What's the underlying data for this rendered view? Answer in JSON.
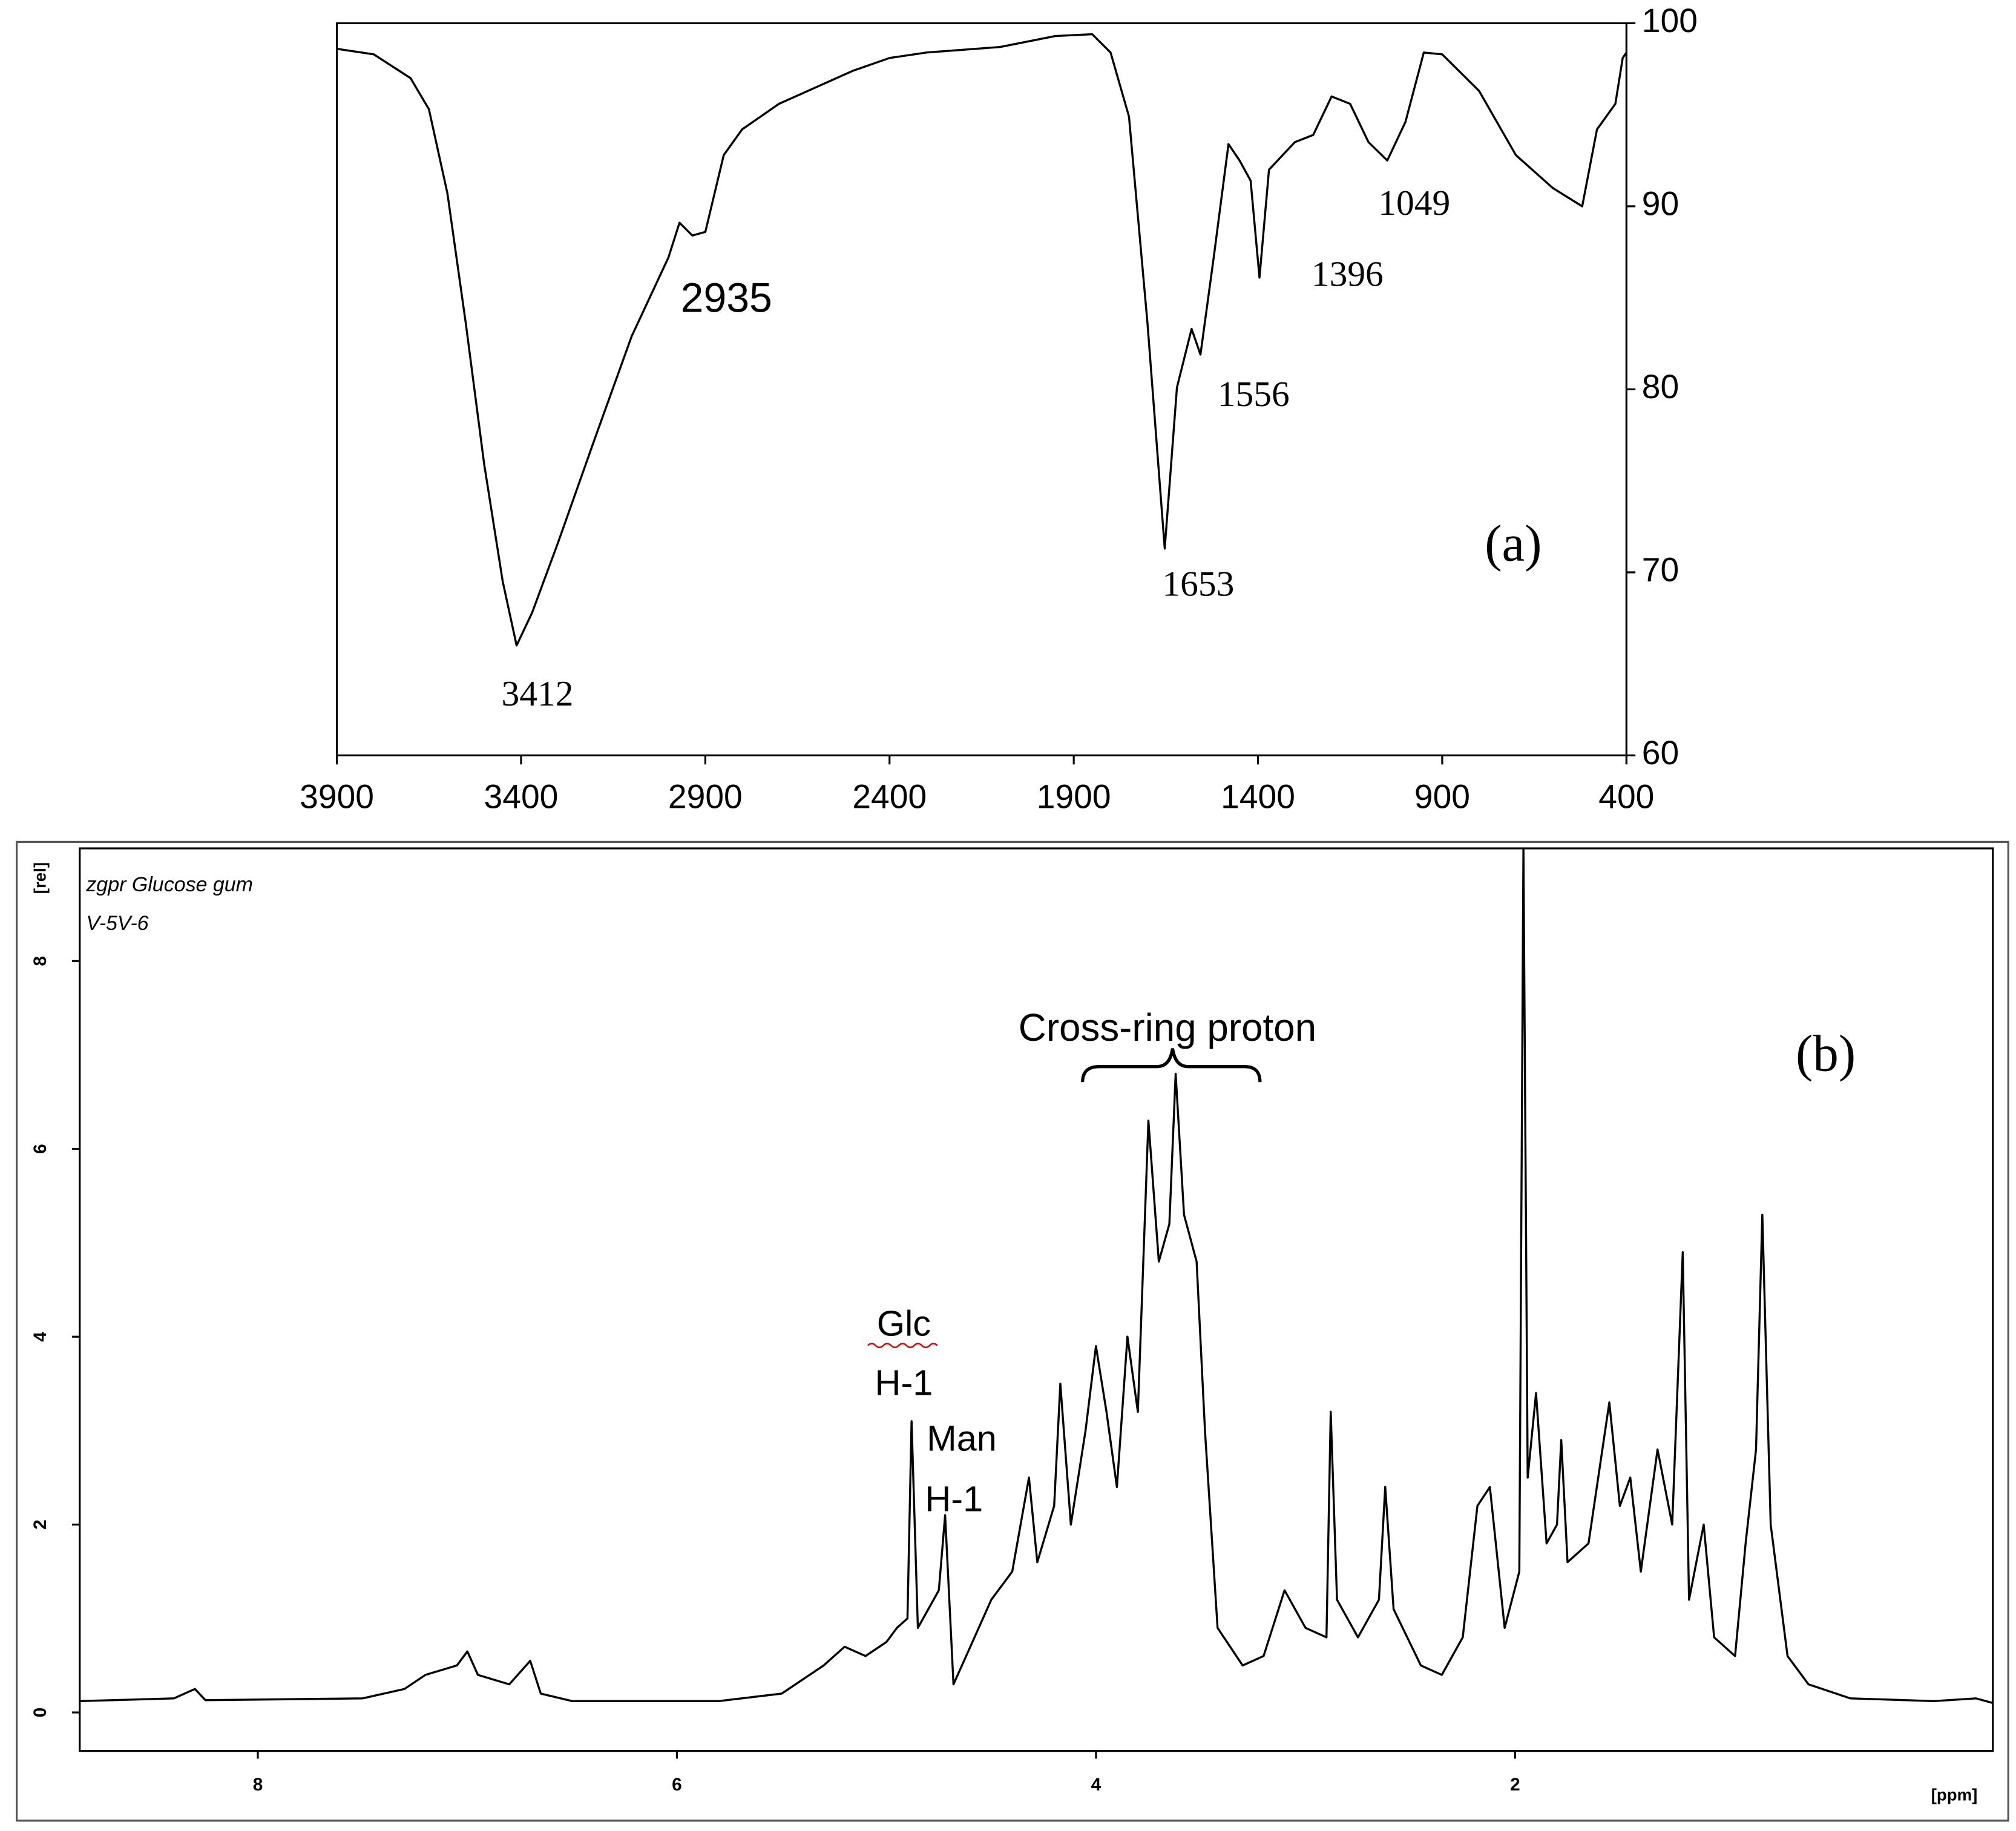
{
  "chart_data": [
    {
      "type": "line",
      "panel_label": "(a)",
      "color": "#000000",
      "yaxis_side": "right",
      "xlim": [
        3900,
        400
      ],
      "xticks": [
        3900,
        3400,
        2900,
        2400,
        1900,
        1400,
        900,
        400
      ],
      "ylim": [
        60,
        100
      ],
      "yticks": [
        60,
        70,
        80,
        90,
        100
      ],
      "annotations": [
        "3412",
        "2935",
        "1653",
        "1556",
        "1396",
        "1049"
      ],
      "x": [
        3900,
        3800,
        3700,
        3650,
        3600,
        3550,
        3500,
        3450,
        3412,
        3370,
        3300,
        3200,
        3100,
        3000,
        2970,
        2935,
        2900,
        2850,
        2800,
        2700,
        2500,
        2400,
        2300,
        2100,
        1950,
        1850,
        1800,
        1750,
        1700,
        1653,
        1620,
        1580,
        1556,
        1520,
        1480,
        1450,
        1420,
        1396,
        1370,
        1300,
        1250,
        1200,
        1150,
        1100,
        1049,
        1000,
        950,
        900,
        800,
        700,
        600,
        520,
        480,
        430,
        410,
        400
      ],
      "values": [
        98.6,
        98.3,
        97.0,
        95.3,
        90.7,
        83.6,
        75.9,
        69.5,
        66.0,
        67.8,
        71.6,
        77.3,
        82.9,
        87.2,
        89.1,
        88.4,
        88.6,
        92.8,
        94.2,
        95.6,
        97.4,
        98.1,
        98.4,
        98.7,
        99.3,
        99.4,
        98.4,
        94.9,
        83.6,
        71.3,
        80.1,
        83.3,
        81.9,
        87.2,
        93.4,
        92.5,
        91.4,
        86.1,
        92.0,
        93.5,
        93.9,
        96.0,
        95.6,
        93.5,
        92.5,
        94.6,
        98.4,
        98.3,
        96.3,
        92.8,
        91.0,
        90.0,
        94.2,
        95.6,
        98.1,
        98.4
      ]
    },
    {
      "type": "line",
      "panel_label": "(b)",
      "color": "#000000",
      "yaxis_side": "left",
      "xlabel": "[ppm]",
      "ylabel": "[rel]",
      "notes": [
        "zgpr Glucose gum",
        "V-5V-6"
      ],
      "annotations": [
        "Cross-ring proton",
        "Glc",
        "H-1",
        "Man",
        "H-1"
      ],
      "xlim": [
        8.85,
        -0.28
      ],
      "xticks": [
        8,
        6,
        4,
        2
      ],
      "ylim": [
        -0.41,
        9.2
      ],
      "yticks": [
        0,
        2,
        4,
        6,
        8
      ],
      "x": [
        8.85,
        8.4,
        8.3,
        8.25,
        7.5,
        7.3,
        7.2,
        7.05,
        7.0,
        6.95,
        6.8,
        6.7,
        6.65,
        6.5,
        5.8,
        5.5,
        5.4,
        5.3,
        5.2,
        5.1,
        5.0,
        4.95,
        4.9,
        4.88,
        4.85,
        4.75,
        4.72,
        4.68,
        4.6,
        4.5,
        4.4,
        4.32,
        4.28,
        4.2,
        4.17,
        4.12,
        4.05,
        4.0,
        3.95,
        3.9,
        3.85,
        3.8,
        3.75,
        3.7,
        3.65,
        3.62,
        3.58,
        3.52,
        3.48,
        3.42,
        3.3,
        3.2,
        3.1,
        3.0,
        2.9,
        2.88,
        2.85,
        2.75,
        2.65,
        2.62,
        2.58,
        2.45,
        2.35,
        2.25,
        2.18,
        2.12,
        2.05,
        1.98,
        1.96,
        1.94,
        1.9,
        1.85,
        1.8,
        1.78,
        1.75,
        1.65,
        1.55,
        1.5,
        1.45,
        1.4,
        1.32,
        1.25,
        1.2,
        1.17,
        1.1,
        1.05,
        0.95,
        0.9,
        0.85,
        0.82,
        0.78,
        0.7,
        0.6,
        0.4,
        0.0,
        -0.2,
        -0.28
      ],
      "values": [
        0.12,
        0.15,
        0.25,
        0.13,
        0.15,
        0.25,
        0.4,
        0.5,
        0.65,
        0.4,
        0.3,
        0.55,
        0.2,
        0.12,
        0.12,
        0.2,
        0.35,
        0.5,
        0.7,
        0.6,
        0.75,
        0.9,
        1.0,
        3.1,
        0.9,
        1.3,
        2.1,
        0.3,
        0.7,
        1.2,
        1.5,
        2.5,
        1.6,
        2.2,
        3.5,
        2.0,
        3.0,
        3.9,
        3.2,
        2.4,
        4.0,
        3.2,
        6.3,
        4.8,
        5.2,
        6.8,
        5.3,
        4.8,
        3.0,
        0.9,
        0.5,
        0.6,
        1.3,
        0.9,
        0.8,
        3.2,
        1.2,
        0.8,
        1.2,
        2.4,
        1.1,
        0.5,
        0.4,
        0.8,
        2.2,
        2.4,
        0.9,
        1.5,
        9.2,
        2.5,
        3.4,
        1.8,
        2.0,
        2.9,
        1.6,
        1.8,
        3.3,
        2.2,
        2.5,
        1.5,
        2.8,
        2.0,
        4.9,
        1.2,
        2.0,
        0.8,
        0.6,
        1.8,
        2.8,
        5.3,
        2.0,
        0.6,
        0.3,
        0.15,
        0.12,
        0.15,
        0.1
      ]
    }
  ]
}
